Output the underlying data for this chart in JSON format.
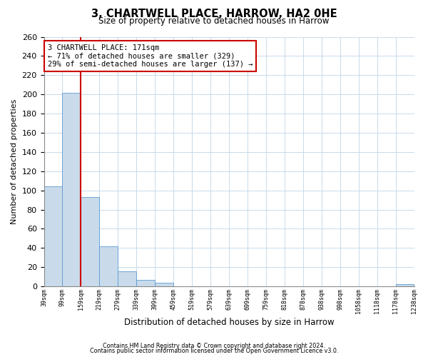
{
  "title": "3, CHARTWELL PLACE, HARROW, HA2 0HE",
  "subtitle": "Size of property relative to detached houses in Harrow",
  "xlabel": "Distribution of detached houses by size in Harrow",
  "ylabel": "Number of detached properties",
  "bar_values": [
    104,
    202,
    93,
    42,
    16,
    7,
    4,
    0,
    0,
    0,
    0,
    0,
    0,
    0,
    0,
    0,
    0,
    0,
    0,
    2
  ],
  "bar_labels": [
    "39sqm",
    "99sqm",
    "159sqm",
    "219sqm",
    "279sqm",
    "339sqm",
    "399sqm",
    "459sqm",
    "519sqm",
    "579sqm",
    "639sqm",
    "699sqm",
    "759sqm",
    "818sqm",
    "878sqm",
    "938sqm",
    "998sqm",
    "1058sqm",
    "1118sqm",
    "1178sqm",
    "1238sqm"
  ],
  "bar_color": "#c9daea",
  "bar_edge_color": "#5b9bd5",
  "ylim": [
    0,
    260
  ],
  "yticks": [
    0,
    20,
    40,
    60,
    80,
    100,
    120,
    140,
    160,
    180,
    200,
    220,
    240,
    260
  ],
  "vline_color": "#cc0000",
  "annotation_title": "3 CHARTWELL PLACE: 171sqm",
  "annotation_line1": "← 71% of detached houses are smaller (329)",
  "annotation_line2": "29% of semi-detached houses are larger (137) →",
  "annotation_box_color": "#ffffff",
  "annotation_box_edge": "#cc0000",
  "footer1": "Contains HM Land Registry data © Crown copyright and database right 2024.",
  "footer2": "Contains public sector information licensed under the Open Government Licence v3.0.",
  "background_color": "#ffffff",
  "grid_color": "#c8daea"
}
